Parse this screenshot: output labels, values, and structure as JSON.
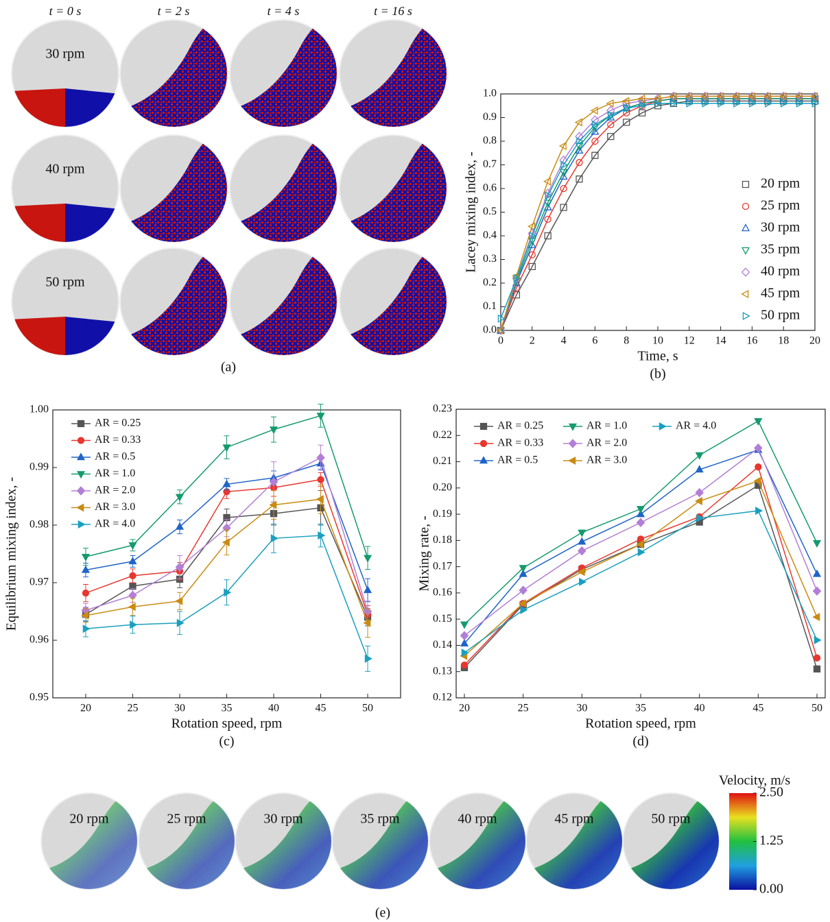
{
  "panel_a": {
    "column_headers": [
      "t = 0 s",
      "t = 2 s",
      "t = 4 s",
      "t = 16 s"
    ],
    "row_labels": [
      "30 rpm",
      "40 rpm",
      "50 rpm"
    ],
    "caption": "(a)"
  },
  "chart_data": [
    {
      "type": "scatter",
      "caption": "(b)",
      "xlabel": "Time, s",
      "ylabel": "Lacey mixing index, -",
      "x": [
        0,
        1,
        2,
        3,
        4,
        5,
        6,
        7,
        8,
        9,
        10,
        11,
        12,
        13,
        14,
        15,
        16,
        17,
        18,
        19,
        20
      ],
      "xlim": [
        0,
        20
      ],
      "xticks": [
        0,
        2,
        4,
        6,
        8,
        10,
        12,
        14,
        16,
        18,
        20
      ],
      "ylim": [
        0,
        1
      ],
      "yticks": [
        {
          "value": 0,
          "label": "0.0"
        },
        {
          "value": 0.1,
          "label": "0.1"
        },
        {
          "value": 0.2,
          "label": "0.2"
        },
        {
          "value": 0.3,
          "label": "0.3"
        },
        {
          "value": 0.4,
          "label": "0.4"
        },
        {
          "value": 0.5,
          "label": "0.5"
        },
        {
          "value": 0.6,
          "label": "0.6"
        },
        {
          "value": 0.7,
          "label": "0.7"
        },
        {
          "value": 0.8,
          "label": "0.8"
        },
        {
          "value": 0.9,
          "label": "0.9"
        },
        {
          "value": 1,
          "label": "1.0"
        }
      ],
      "legend": "lower right",
      "legend_columns": 1,
      "filled_markers": false,
      "series": [
        {
          "name": "20 rpm",
          "color": "#555555",
          "marker": "square",
          "values": [
            0.0,
            0.15,
            0.27,
            0.4,
            0.52,
            0.64,
            0.74,
            0.82,
            0.88,
            0.92,
            0.95,
            0.96,
            0.97,
            0.97,
            0.97,
            0.97,
            0.97,
            0.97,
            0.97,
            0.97,
            0.97
          ]
        },
        {
          "name": "25 rpm",
          "color": "#e8372f",
          "marker": "circle",
          "values": [
            0.0,
            0.18,
            0.32,
            0.47,
            0.6,
            0.71,
            0.8,
            0.87,
            0.92,
            0.95,
            0.97,
            0.98,
            0.98,
            0.98,
            0.98,
            0.98,
            0.98,
            0.98,
            0.98,
            0.98,
            0.98
          ]
        },
        {
          "name": "30 rpm",
          "color": "#1f64c8",
          "marker": "triangle-up",
          "values": [
            0.0,
            0.2,
            0.36,
            0.52,
            0.65,
            0.76,
            0.84,
            0.9,
            0.94,
            0.96,
            0.97,
            0.98,
            0.98,
            0.98,
            0.98,
            0.98,
            0.98,
            0.98,
            0.98,
            0.98,
            0.98
          ]
        },
        {
          "name": "35 rpm",
          "color": "#159a6e",
          "marker": "triangle-down",
          "values": [
            0.0,
            0.21,
            0.38,
            0.54,
            0.67,
            0.78,
            0.86,
            0.91,
            0.94,
            0.96,
            0.97,
            0.98,
            0.98,
            0.98,
            0.98,
            0.98,
            0.98,
            0.98,
            0.98,
            0.98,
            0.98
          ]
        },
        {
          "name": "40 rpm",
          "color": "#b27fd6",
          "marker": "diamond",
          "values": [
            0.0,
            0.22,
            0.41,
            0.58,
            0.72,
            0.82,
            0.89,
            0.93,
            0.96,
            0.97,
            0.98,
            0.99,
            0.99,
            0.99,
            0.99,
            0.99,
            0.99,
            0.99,
            0.99,
            0.99,
            0.99
          ]
        },
        {
          "name": "45 rpm",
          "color": "#c98b12",
          "marker": "triangle-left",
          "values": [
            0.0,
            0.23,
            0.44,
            0.63,
            0.78,
            0.88,
            0.93,
            0.96,
            0.97,
            0.98,
            0.98,
            0.99,
            0.99,
            0.99,
            0.99,
            0.99,
            0.99,
            0.99,
            0.99,
            0.99,
            0.99
          ]
        },
        {
          "name": "50 rpm",
          "color": "#1a9fbf",
          "marker": "triangle-right",
          "values": [
            0.05,
            0.22,
            0.4,
            0.57,
            0.7,
            0.8,
            0.87,
            0.91,
            0.94,
            0.95,
            0.96,
            0.96,
            0.96,
            0.96,
            0.96,
            0.96,
            0.96,
            0.96,
            0.96,
            0.96,
            0.96
          ]
        }
      ]
    },
    {
      "type": "line",
      "caption": "(c)",
      "xlabel": "Rotation speed, rpm",
      "ylabel": "Equilibrium mixing index, -",
      "x": [
        20,
        25,
        30,
        35,
        40,
        45,
        50
      ],
      "xlim": [
        16.5,
        53.5
      ],
      "xticks": [
        20,
        25,
        30,
        35,
        40,
        45,
        50
      ],
      "ylim": [
        0.95,
        1
      ],
      "yticks": [
        0.95,
        0.96,
        0.97,
        0.98,
        0.99,
        {
          "value": 1,
          "label": "1.00"
        }
      ],
      "legend": "upper left",
      "legend_columns": 1,
      "filled_markers": true,
      "series": [
        {
          "name": "AR = 0.25",
          "color": "#555555",
          "marker": "square",
          "values": [
            0.9645,
            0.9694,
            0.9706,
            0.9813,
            0.982,
            0.983,
            0.964
          ],
          "errors": [
            0.0012,
            0.0015,
            0.0015,
            0.0015,
            0.002,
            0.003,
            0.0015
          ]
        },
        {
          "name": "AR = 0.33",
          "color": "#e8372f",
          "marker": "circle",
          "values": [
            0.9682,
            0.9712,
            0.972,
            0.9858,
            0.9865,
            0.9879,
            0.9645
          ],
          "errors": [
            0.0015,
            0.0012,
            0.0015,
            0.0012,
            0.0015,
            0.0012,
            0.0015
          ]
        },
        {
          "name": "AR = 0.5",
          "color": "#1f64c8",
          "marker": "triangle-up",
          "values": [
            0.9722,
            0.9737,
            0.9797,
            0.9871,
            0.9882,
            0.9907,
            0.9687
          ],
          "errors": [
            0.0012,
            0.001,
            0.0012,
            0.001,
            0.0012,
            0.001,
            0.002
          ]
        },
        {
          "name": "AR = 1.0",
          "color": "#159a6e",
          "marker": "triangle-down",
          "values": [
            0.9745,
            0.9765,
            0.9849,
            0.9935,
            0.9966,
            0.999,
            0.9743
          ],
          "errors": [
            0.0015,
            0.001,
            0.0012,
            0.002,
            0.0022,
            0.002,
            0.002
          ]
        },
        {
          "name": "AR = 2.0",
          "color": "#b27fd6",
          "marker": "diamond",
          "values": [
            0.9652,
            0.9678,
            0.9727,
            0.9795,
            0.9875,
            0.9917,
            0.965
          ],
          "errors": [
            0.0012,
            0.0012,
            0.002,
            0.0015,
            0.0035,
            0.0022,
            0.0018
          ]
        },
        {
          "name": "AR = 3.0",
          "color": "#c98b12",
          "marker": "triangle-left",
          "values": [
            0.9643,
            0.9658,
            0.9668,
            0.977,
            0.9835,
            0.9845,
            0.963
          ],
          "errors": [
            0.0012,
            0.0015,
            0.0015,
            0.0022,
            0.0025,
            0.0025,
            0.0025
          ]
        },
        {
          "name": "AR = 4.0",
          "color": "#1a9fbf",
          "marker": "triangle-right",
          "values": [
            0.962,
            0.9627,
            0.963,
            0.9683,
            0.9777,
            0.9782,
            0.9568
          ],
          "errors": [
            0.0014,
            0.0015,
            0.002,
            0.0022,
            0.0025,
            0.002,
            0.0022
          ]
        }
      ]
    },
    {
      "type": "line",
      "caption": "(d)",
      "xlabel": "Rotation speed, rpm",
      "ylabel": "Mixing rate, -",
      "x": [
        20,
        25,
        30,
        35,
        40,
        45,
        50
      ],
      "xlim": [
        19.3,
        50.7
      ],
      "xticks": [
        20,
        25,
        30,
        35,
        40,
        45,
        50
      ],
      "ylim": [
        0.12,
        0.23
      ],
      "yticks": [
        0.12,
        0.13,
        0.14,
        0.15,
        0.16,
        0.17,
        0.18,
        0.19,
        {
          "value": 0.2,
          "label": "0.20"
        },
        0.21,
        0.22,
        0.23
      ],
      "legend": "upper left",
      "legend_columns": 3,
      "filled_markers": true,
      "series": [
        {
          "name": "AR = 0.25",
          "color": "#555555",
          "marker": "square",
          "values": [
            0.1315,
            0.1555,
            0.169,
            0.1785,
            0.187,
            0.201,
            0.131
          ]
        },
        {
          "name": "AR = 0.33",
          "color": "#e8372f",
          "marker": "circle",
          "values": [
            0.1325,
            0.156,
            0.1695,
            0.1805,
            0.189,
            0.208,
            0.1352
          ]
        },
        {
          "name": "AR = 0.5",
          "color": "#1f64c8",
          "marker": "triangle-up",
          "values": [
            0.1407,
            0.1672,
            0.1795,
            0.19,
            0.207,
            0.2145,
            0.1672
          ]
        },
        {
          "name": "AR = 1.0",
          "color": "#159a6e",
          "marker": "triangle-down",
          "values": [
            0.148,
            0.1695,
            0.183,
            0.192,
            0.2125,
            0.2255,
            0.179
          ]
        },
        {
          "name": "AR = 2.0",
          "color": "#b27fd6",
          "marker": "diamond",
          "values": [
            0.1437,
            0.161,
            0.176,
            0.1868,
            0.1982,
            0.2152,
            0.1607
          ]
        },
        {
          "name": "AR = 3.0",
          "color": "#c98b12",
          "marker": "triangle-left",
          "values": [
            0.136,
            0.156,
            0.168,
            0.1785,
            0.195,
            0.2027,
            0.1508
          ]
        },
        {
          "name": "AR = 4.0",
          "color": "#1a9fbf",
          "marker": "triangle-right",
          "values": [
            0.1372,
            0.1535,
            0.1642,
            0.1755,
            0.1885,
            0.1913,
            0.142
          ]
        }
      ]
    }
  ],
  "panel_e": {
    "labels": [
      "20 rpm",
      "25 rpm",
      "30 rpm",
      "35 rpm",
      "40 rpm",
      "45 rpm",
      "50 rpm"
    ],
    "caption": "(e)",
    "colorbar": {
      "label": "Velocity, m/s",
      "lim": [
        0,
        2.5
      ],
      "ticks": [
        {
          "value": 2.5,
          "label": "2.50"
        },
        {
          "value": 1.25,
          "label": "1.25"
        },
        {
          "value": 0,
          "label": "0.00"
        }
      ]
    }
  }
}
